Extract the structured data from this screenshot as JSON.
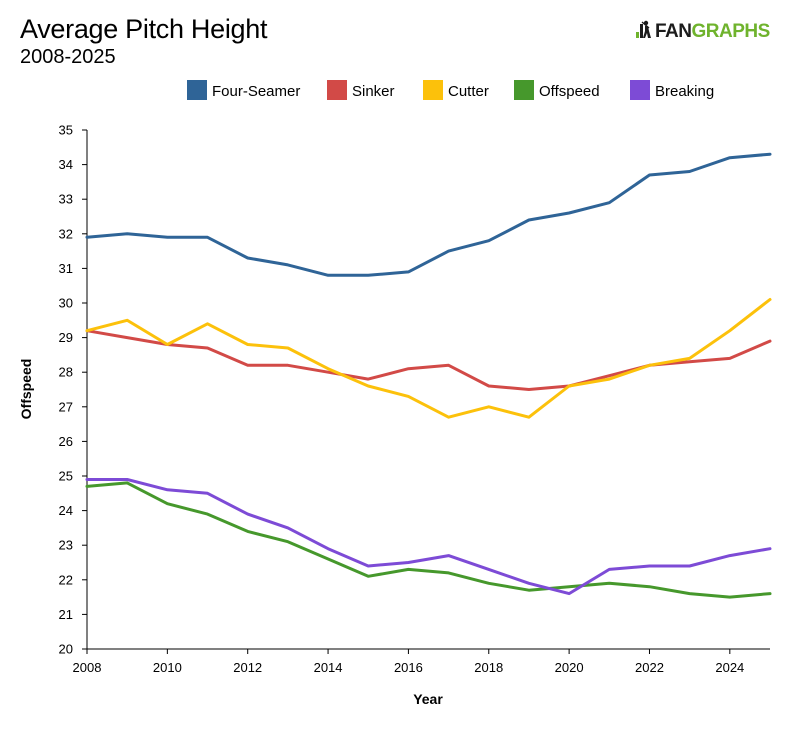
{
  "header": {
    "title": "Average Pitch Height",
    "subtitle": "2008-2025",
    "logo_fan": "FAN",
    "logo_graphs": "GRAPHS"
  },
  "colors": {
    "logo_green": "#6fb32d",
    "axis": "#000000"
  },
  "chart_data": {
    "type": "line",
    "title": "Average Pitch Height",
    "subtitle": "2008-2025",
    "xlabel": "Year",
    "ylabel": "Offspeed",
    "xlim": [
      2008,
      2025
    ],
    "ylim": [
      20,
      35
    ],
    "x_ticks": [
      "2008",
      "2010",
      "2012",
      "2014",
      "2016",
      "2018",
      "2020",
      "2022",
      "2024"
    ],
    "y_ticks": [
      "20",
      "21",
      "22",
      "23",
      "24",
      "25",
      "26",
      "27",
      "28",
      "29",
      "30",
      "31",
      "32",
      "33",
      "34",
      "35"
    ],
    "grid": false,
    "legend_position": "top",
    "x": [
      2008,
      2009,
      2010,
      2011,
      2012,
      2013,
      2014,
      2015,
      2016,
      2017,
      2018,
      2019,
      2020,
      2021,
      2022,
      2023,
      2024,
      2025
    ],
    "series": [
      {
        "name": "Four-Seamer",
        "color": "#2f6497",
        "values": [
          31.9,
          32.0,
          31.9,
          31.9,
          31.3,
          31.1,
          30.8,
          30.8,
          30.9,
          31.5,
          31.8,
          32.4,
          32.6,
          32.9,
          33.7,
          33.8,
          34.2,
          34.3
        ]
      },
      {
        "name": "Sinker",
        "color": "#d24a47",
        "values": [
          29.2,
          29.0,
          28.8,
          28.7,
          28.2,
          28.2,
          28.0,
          27.8,
          28.1,
          28.2,
          27.6,
          27.5,
          27.6,
          27.9,
          28.2,
          28.3,
          28.4,
          28.9
        ]
      },
      {
        "name": "Cutter",
        "color": "#fcc10b",
        "values": [
          29.2,
          29.5,
          28.8,
          29.4,
          28.8,
          28.7,
          28.1,
          27.6,
          27.3,
          26.7,
          27.0,
          26.7,
          27.6,
          27.8,
          28.2,
          28.4,
          29.2,
          30.1
        ]
      },
      {
        "name": "Offspeed",
        "color": "#46982c",
        "values": [
          24.7,
          24.8,
          24.2,
          23.9,
          23.4,
          23.1,
          22.6,
          22.1,
          22.3,
          22.2,
          21.9,
          21.7,
          21.8,
          21.9,
          21.8,
          21.6,
          21.5,
          21.6
        ]
      },
      {
        "name": "Breaking",
        "color": "#7d4bd6",
        "values": [
          24.9,
          24.9,
          24.6,
          24.5,
          23.9,
          23.5,
          22.9,
          22.4,
          22.5,
          22.7,
          22.3,
          21.9,
          21.6,
          22.3,
          22.4,
          22.4,
          22.7,
          22.9
        ]
      }
    ]
  }
}
